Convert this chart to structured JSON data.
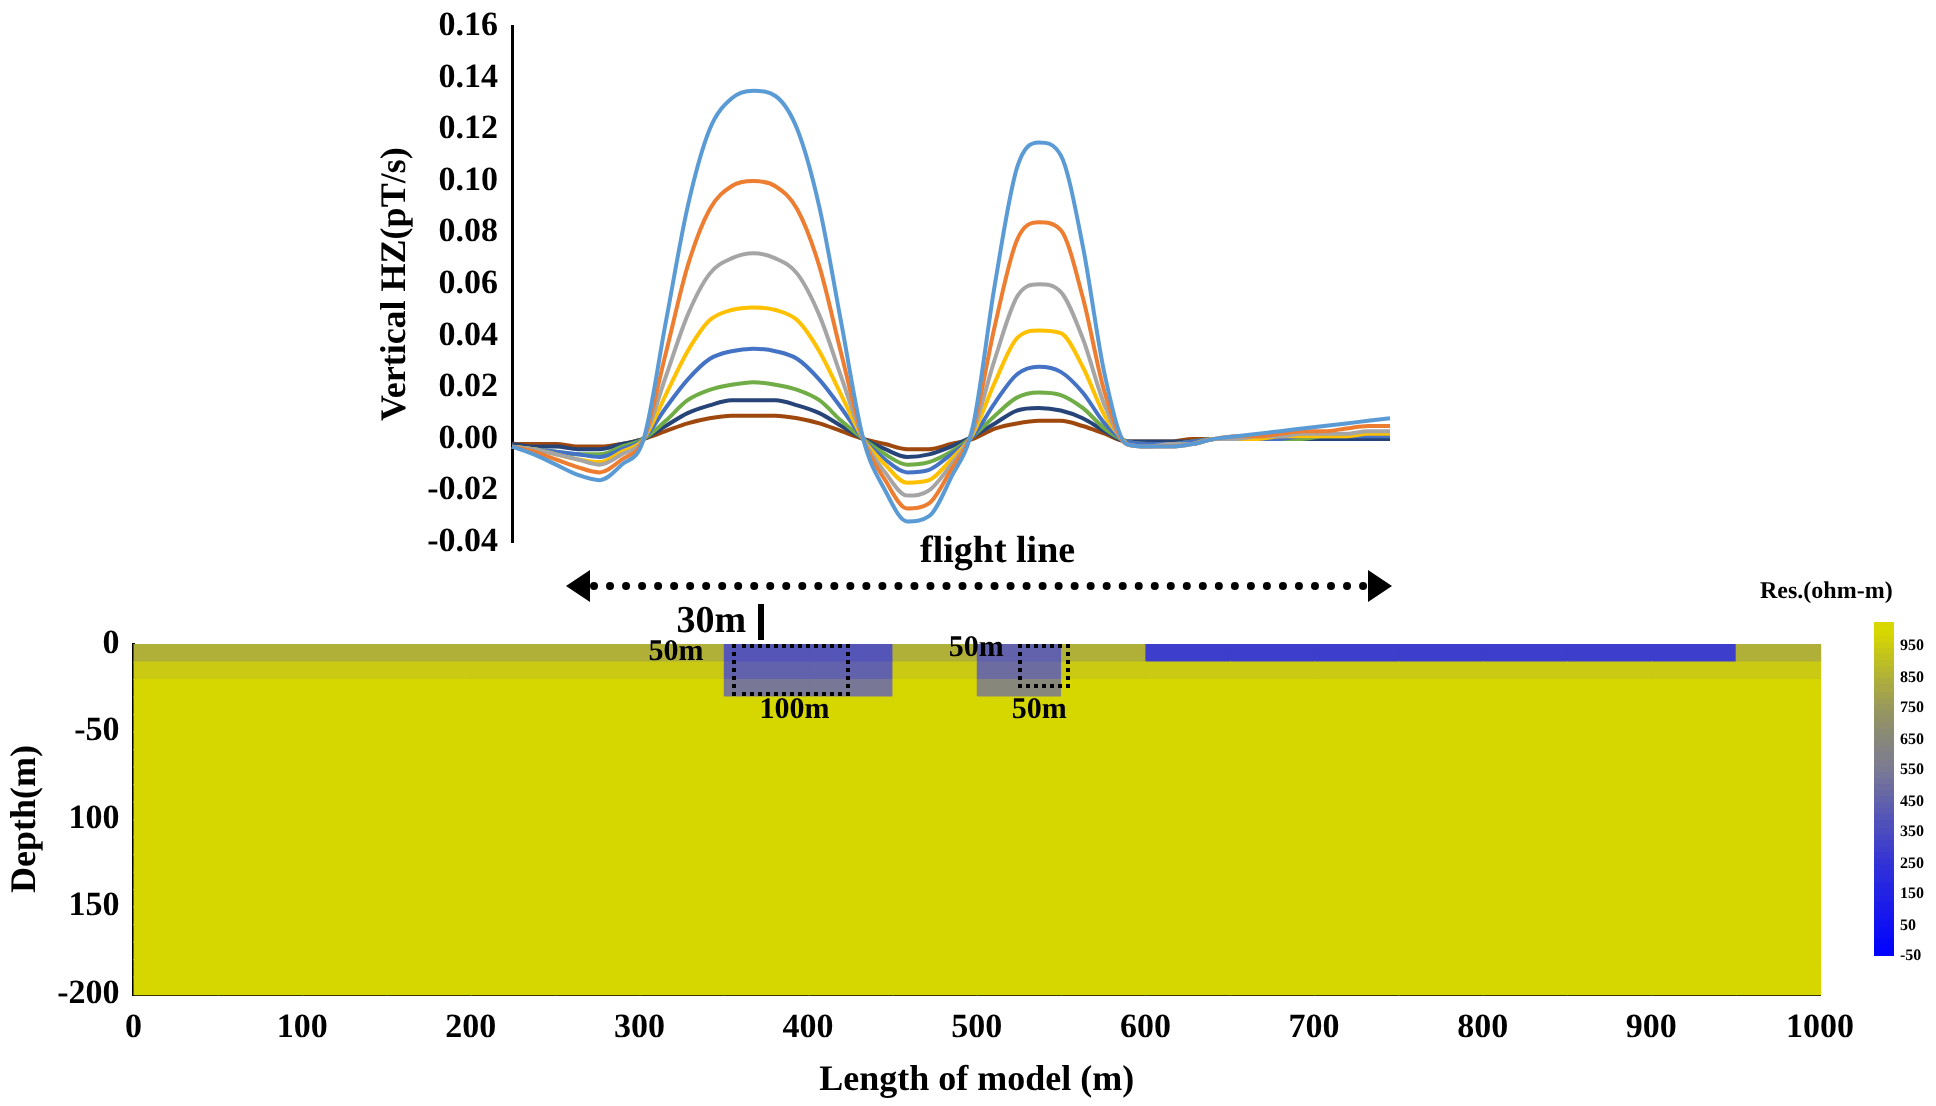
{
  "chart_data": [
    {
      "type": "line",
      "ylabel": "Vertical HZ(pT/s)",
      "annotations": [
        "flight line"
      ],
      "categories": [
        null,
        null,
        null,
        null,
        null,
        null,
        null,
        null,
        null,
        null,
        null,
        null,
        null,
        null,
        null,
        null,
        null,
        null,
        null,
        null,
        null,
        null,
        null,
        null,
        null,
        null,
        null,
        null,
        null,
        null,
        null,
        null,
        null,
        null,
        null,
        null,
        null,
        null,
        null,
        null,
        null
      ],
      "series": [
        {
          "color": "#5b9bd5",
          "values": [
            -0.003,
            -0.006,
            -0.01,
            -0.014,
            -0.016,
            -0.01,
            0.0,
            0.045,
            0.09,
            0.12,
            0.132,
            0.135,
            0.133,
            0.12,
            0.09,
            0.045,
            0.0,
            -0.02,
            -0.032,
            -0.03,
            -0.015,
            0.005,
            0.06,
            0.105,
            0.115,
            0.11,
            0.075,
            0.025,
            -0.002,
            -0.003,
            -0.003,
            -0.002,
            0.0,
            0.001,
            0.002,
            0.003,
            0.004,
            0.005,
            0.006,
            0.007,
            0.008
          ]
        },
        {
          "color": "#ed7d31",
          "values": [
            -0.003,
            -0.005,
            -0.008,
            -0.011,
            -0.013,
            -0.008,
            0.0,
            0.033,
            0.067,
            0.089,
            0.098,
            0.1,
            0.098,
            0.089,
            0.067,
            0.033,
            0.0,
            -0.016,
            -0.027,
            -0.025,
            -0.012,
            0.004,
            0.044,
            0.077,
            0.084,
            0.081,
            0.055,
            0.018,
            -0.002,
            -0.003,
            -0.003,
            -0.002,
            0.0,
            0.001,
            0.001,
            0.002,
            0.003,
            0.003,
            0.004,
            0.005,
            0.005
          ]
        },
        {
          "color": "#a5a5a5",
          "values": [
            -0.003,
            -0.004,
            -0.006,
            -0.008,
            -0.01,
            -0.006,
            0.0,
            0.024,
            0.048,
            0.064,
            0.07,
            0.072,
            0.07,
            0.064,
            0.048,
            0.024,
            0.0,
            -0.013,
            -0.022,
            -0.02,
            -0.01,
            0.003,
            0.031,
            0.055,
            0.06,
            0.057,
            0.039,
            0.013,
            -0.002,
            -0.003,
            -0.002,
            -0.002,
            0.0,
            0.0,
            0.001,
            0.001,
            0.002,
            0.002,
            0.002,
            0.003,
            0.003
          ]
        },
        {
          "color": "#ffc000",
          "values": [
            -0.003,
            -0.004,
            -0.006,
            -0.008,
            -0.009,
            -0.005,
            0.0,
            0.017,
            0.034,
            0.046,
            0.05,
            0.051,
            0.05,
            0.046,
            0.034,
            0.017,
            0.0,
            -0.01,
            -0.017,
            -0.016,
            -0.008,
            0.002,
            0.022,
            0.039,
            0.042,
            0.041,
            0.028,
            0.009,
            -0.002,
            null,
            null,
            -0.002,
            0.0,
            0.0,
            0.0,
            0.001,
            0.001,
            0.001,
            0.001,
            0.002,
            0.002
          ]
        },
        {
          "color": "#4472c4",
          "values": [
            -0.003,
            -0.004,
            -0.005,
            -0.006,
            -0.007,
            -0.004,
            0.0,
            0.012,
            0.023,
            0.031,
            0.034,
            0.035,
            0.034,
            0.031,
            0.023,
            0.012,
            0.0,
            -0.008,
            -0.013,
            -0.012,
            -0.006,
            0.001,
            0.014,
            0.025,
            0.028,
            0.026,
            0.018,
            0.006,
            -0.001,
            -0.002,
            -0.002,
            -0.001,
            0.0,
            0.0,
            0.0,
            0.0,
            0.001,
            0.001,
            0.001,
            0.001,
            0.001
          ]
        },
        {
          "color": "#70ad47",
          "values": [
            -0.003,
            -0.004,
            -0.005,
            -0.006,
            -0.006,
            -0.003,
            0.0,
            0.007,
            0.015,
            0.019,
            0.021,
            0.022,
            0.021,
            0.019,
            0.015,
            0.007,
            0.0,
            -0.006,
            -0.01,
            -0.009,
            -0.005,
            0.001,
            0.009,
            0.016,
            0.018,
            0.017,
            0.012,
            0.004,
            -0.001,
            -0.002,
            -0.002,
            -0.001,
            0.0,
            0.0,
            0.0,
            0.0,
            0.0,
            0.001,
            0.001,
            null,
            null
          ]
        },
        {
          "color": "#264478",
          "values": [
            -0.002,
            -0.003,
            -0.003,
            -0.004,
            -0.004,
            -0.002,
            0.0,
            0.005,
            0.01,
            0.013,
            0.015,
            0.015,
            0.015,
            0.013,
            0.01,
            0.005,
            0.0,
            -0.004,
            -0.007,
            -0.006,
            -0.003,
            0.001,
            0.006,
            0.011,
            0.012,
            0.011,
            0.008,
            0.003,
            -0.001,
            -0.001,
            -0.001,
            -0.001,
            0.0,
            0.0,
            0.0,
            0.0,
            0.0,
            0.0,
            0.0,
            0.0,
            0.0
          ]
        },
        {
          "color": "#9e480e",
          "values": [
            -0.002,
            -0.002,
            -0.002,
            -0.003,
            -0.003,
            -0.002,
            0.0,
            0.003,
            0.006,
            0.008,
            0.009,
            0.009,
            0.009,
            0.008,
            0.006,
            0.003,
            0.0,
            -0.002,
            -0.004,
            -0.004,
            -0.002,
            0.0,
            0.004,
            0.006,
            0.007,
            0.007,
            0.005,
            0.002,
            -0.001,
            -0.001,
            -0.001,
            0.0,
            0.0,
            0.0,
            0.0,
            0.0,
            0.0,
            0.0,
            0.0,
            0.0,
            0.0
          ]
        }
      ],
      "ylim": [
        -0.04,
        0.16
      ],
      "yticks": [
        -0.04,
        -0.02,
        {
          "value": 0,
          "label": "0.00"
        },
        0.02,
        0.04,
        0.06,
        0.08,
        {
          "value": 0.1,
          "label": "0.10"
        },
        0.12,
        0.14,
        0.16
      ],
      "tick_labels": "y",
      "grid": false,
      "legend": false,
      "marker": "none",
      "line_style": "solid"
    },
    {
      "type": "heatmap",
      "xlabel": "Length of model (m)",
      "ylabel": "Depth(m)",
      "clabel": "Res.(ohm-m)",
      "annotations": [
        "30m",
        "50m",
        "100m",
        "50m",
        "50m"
      ],
      "x": [
        25,
        75,
        125,
        175,
        225,
        275,
        325,
        375,
        425,
        475,
        525,
        575,
        625,
        675,
        725,
        775,
        825,
        875,
        925,
        975
      ],
      "y": [
        -5,
        -15,
        -25,
        -35,
        -45,
        -55,
        -65,
        -75,
        -85,
        -95,
        -105,
        -115,
        -125,
        -135,
        -145,
        -155,
        -165,
        -175,
        -185,
        -195
      ],
      "xlim": [
        0,
        1000
      ],
      "xticks": [
        0,
        100,
        200,
        300,
        400,
        500,
        600,
        700,
        800,
        900,
        1000
      ],
      "ylim": [
        -200,
        0
      ],
      "yticks": [
        {
          "value": -200,
          "label": "-200"
        },
        {
          "value": -150,
          "label": "150"
        },
        {
          "value": -100,
          "label": "100"
        },
        {
          "value": -50,
          "label": "-50"
        },
        {
          "value": 0,
          "label": "0"
        }
      ],
      "clim": [
        -50,
        1030
      ],
      "cticks": [
        -50,
        50,
        150,
        250,
        350,
        450,
        550,
        650,
        750,
        850,
        950
      ],
      "cells": [
        [
          850,
          850,
          850,
          850,
          850,
          850,
          850,
          400,
          400,
          850,
          450,
          850,
          300,
          300,
          300,
          300,
          300,
          300,
          300,
          850
        ],
        [
          950,
          950,
          950,
          950,
          950,
          950,
          950,
          450,
          450,
          950,
          500,
          950,
          950,
          950,
          950,
          950,
          950,
          950,
          950,
          950
        ],
        [
          1000,
          1000,
          1000,
          1000,
          1000,
          1000,
          1000,
          550,
          550,
          1000,
          650,
          1000,
          1000,
          1000,
          1000,
          1000,
          1000,
          1000,
          1000,
          1000
        ],
        [
          1000,
          1000,
          1000,
          1000,
          1000,
          1000,
          1000,
          1000,
          1000,
          1000,
          1000,
          1000,
          1000,
          1000,
          1000,
          1000,
          1000,
          1000,
          1000,
          1000
        ],
        [
          1000,
          1000,
          1000,
          1000,
          1000,
          1000,
          1000,
          1000,
          1000,
          1000,
          1000,
          1000,
          1000,
          1000,
          1000,
          1000,
          1000,
          1000,
          1000,
          1000
        ],
        [
          1000,
          1000,
          1000,
          1000,
          1000,
          1000,
          1000,
          1000,
          1000,
          1000,
          1000,
          1000,
          1000,
          1000,
          1000,
          1000,
          1000,
          1000,
          1000,
          1000
        ],
        [
          1000,
          1000,
          1000,
          1000,
          1000,
          1000,
          1000,
          1000,
          1000,
          1000,
          1000,
          1000,
          1000,
          1000,
          1000,
          1000,
          1000,
          1000,
          1000,
          1000
        ],
        [
          1000,
          1000,
          1000,
          1000,
          1000,
          1000,
          1000,
          1000,
          1000,
          1000,
          1000,
          1000,
          1000,
          1000,
          1000,
          1000,
          1000,
          1000,
          1000,
          1000
        ],
        [
          1000,
          1000,
          1000,
          1000,
          1000,
          1000,
          1000,
          1000,
          1000,
          1000,
          1000,
          1000,
          1000,
          1000,
          1000,
          1000,
          1000,
          1000,
          1000,
          1000
        ],
        [
          1000,
          1000,
          1000,
          1000,
          1000,
          1000,
          1000,
          1000,
          1000,
          1000,
          1000,
          1000,
          1000,
          1000,
          1000,
          1000,
          1000,
          1000,
          1000,
          1000
        ],
        [
          1000,
          1000,
          1000,
          1000,
          1000,
          1000,
          1000,
          1000,
          1000,
          1000,
          1000,
          1000,
          1000,
          1000,
          1000,
          1000,
          1000,
          1000,
          1000,
          1000
        ],
        [
          1000,
          1000,
          1000,
          1000,
          1000,
          1000,
          1000,
          1000,
          1000,
          1000,
          1000,
          1000,
          1000,
          1000,
          1000,
          1000,
          1000,
          1000,
          1000,
          1000
        ],
        [
          1000,
          1000,
          1000,
          1000,
          1000,
          1000,
          1000,
          1000,
          1000,
          1000,
          1000,
          1000,
          1000,
          1000,
          1000,
          1000,
          1000,
          1000,
          1000,
          1000
        ],
        [
          1000,
          1000,
          1000,
          1000,
          1000,
          1000,
          1000,
          1000,
          1000,
          1000,
          1000,
          1000,
          1000,
          1000,
          1000,
          1000,
          1000,
          1000,
          1000,
          1000
        ],
        [
          1000,
          1000,
          1000,
          1000,
          1000,
          1000,
          1000,
          1000,
          1000,
          1000,
          1000,
          1000,
          1000,
          1000,
          1000,
          1000,
          1000,
          1000,
          1000,
          1000
        ],
        [
          1000,
          1000,
          1000,
          1000,
          1000,
          1000,
          1000,
          1000,
          1000,
          1000,
          1000,
          1000,
          1000,
          1000,
          1000,
          1000,
          1000,
          1000,
          1000,
          1000
        ],
        [
          1000,
          1000,
          1000,
          1000,
          1000,
          1000,
          1000,
          1000,
          1000,
          1000,
          1000,
          1000,
          1000,
          1000,
          1000,
          1000,
          1000,
          1000,
          1000,
          1000
        ],
        [
          1000,
          1000,
          1000,
          1000,
          1000,
          1000,
          1000,
          1000,
          1000,
          1000,
          1000,
          1000,
          1000,
          1000,
          1000,
          1000,
          1000,
          1000,
          1000,
          1000
        ],
        [
          1000,
          1000,
          1000,
          1000,
          1000,
          1000,
          1000,
          1000,
          1000,
          1000,
          1000,
          1000,
          1000,
          1000,
          1000,
          1000,
          1000,
          1000,
          1000,
          1000
        ],
        [
          1000,
          1000,
          1000,
          1000,
          1000,
          1000,
          1000,
          1000,
          1000,
          1000,
          1000,
          1000,
          1000,
          1000,
          1000,
          1000,
          1000,
          1000,
          1000,
          1000
        ]
      ]
    }
  ]
}
